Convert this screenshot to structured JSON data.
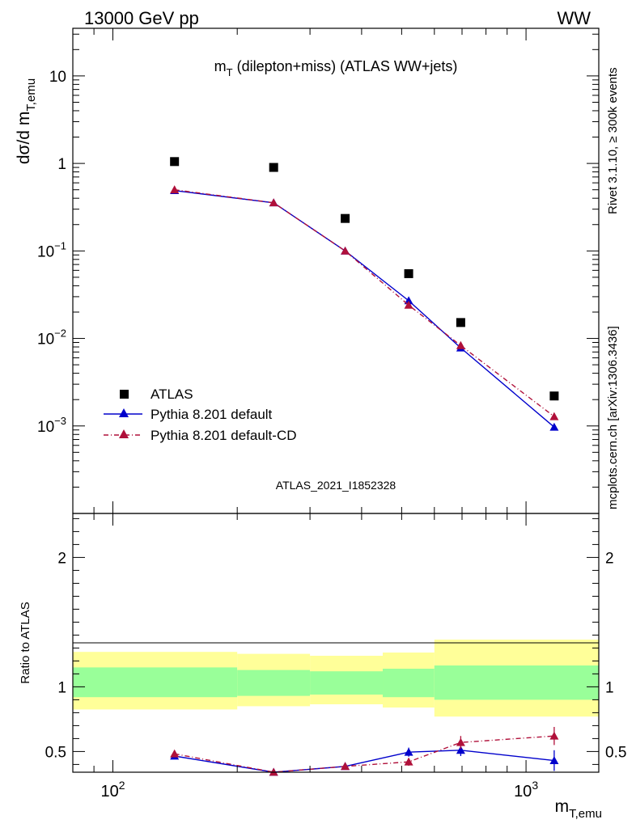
{
  "header": {
    "left": "13000 GeV pp",
    "right": "WW"
  },
  "side_labels": {
    "rivet": "Rivet 3.1.10, ≥ 300k events",
    "mcplots": "mcplots.cern.ch [arXiv:1306.3436]"
  },
  "chart_data": [
    {
      "type": "scatter",
      "panel": "main",
      "title_main": "m",
      "title_sub": "T",
      "title_rest": " (dilepton+miss) (ATLAS WW+jets)",
      "ylabel_main": "dσ/d m",
      "ylabel_sub": "T,emu",
      "watermark": "ATLAS_2021_I1852328",
      "xscale": "log",
      "yscale": "log",
      "xlim": [
        80,
        1500
      ],
      "ylim": [
        0.0001,
        35
      ],
      "y_ticks": [
        {
          "value": 10,
          "label": "10",
          "sup": ""
        },
        {
          "value": 1,
          "label": "1",
          "sup": ""
        },
        {
          "value": 0.1,
          "label": "10",
          "sup": "−1"
        },
        {
          "value": 0.01,
          "label": "10",
          "sup": "−2"
        },
        {
          "value": 0.001,
          "label": "10",
          "sup": "−3"
        }
      ],
      "legend_position": "bottom-left",
      "series": [
        {
          "name": "ATLAS",
          "style": "marker-square",
          "color": "#000000",
          "x": [
            141,
            245,
            365,
            520,
            695,
            1170
          ],
          "y": [
            1.05,
            0.9,
            0.235,
            0.055,
            0.0152,
            0.0022
          ]
        },
        {
          "name": "Pythia 8.201 default",
          "style": "solid-triangle",
          "color": "#0000cc",
          "x": [
            141,
            245,
            365,
            520,
            695,
            1170
          ],
          "y": [
            0.49,
            0.355,
            0.1,
            0.027,
            0.0078,
            0.00097
          ]
        },
        {
          "name": "Pythia 8.201 default-CD",
          "style": "dashdot-triangle",
          "color": "#b0103a",
          "x": [
            141,
            245,
            365,
            520,
            695,
            1170
          ],
          "y": [
            0.5,
            0.355,
            0.1,
            0.024,
            0.0083,
            0.00128
          ]
        }
      ]
    },
    {
      "type": "scatter",
      "panel": "ratio",
      "ylabel": "Ratio to ATLAS",
      "xlabel_main": "m",
      "xlabel_sub": "T,emu",
      "xscale": "log",
      "xlim": [
        80,
        1500
      ],
      "ylim": [
        0.34,
        2.34
      ],
      "x_ticks": [
        {
          "value": 100,
          "label": "10",
          "sup": "2"
        },
        {
          "value": 1000,
          "label": "10",
          "sup": "3"
        }
      ],
      "y_ticks": [
        {
          "value": 0.5,
          "label": "0.5"
        },
        {
          "value": 1,
          "label": "1"
        },
        {
          "value": 2,
          "label": "2"
        }
      ],
      "bands": [
        {
          "x_from": 80,
          "x_to": 200,
          "inner": [
            0.92,
            1.15
          ],
          "outer": [
            0.825,
            1.27
          ]
        },
        {
          "x_from": 200,
          "x_to": 300,
          "inner": [
            0.93,
            1.13
          ],
          "outer": [
            0.85,
            1.255
          ]
        },
        {
          "x_from": 300,
          "x_to": 450,
          "inner": [
            0.94,
            1.12
          ],
          "outer": [
            0.865,
            1.24
          ]
        },
        {
          "x_from": 450,
          "x_to": 600,
          "inner": [
            0.92,
            1.14
          ],
          "outer": [
            0.84,
            1.265
          ]
        },
        {
          "x_from": 600,
          "x_to": 1500,
          "inner": [
            0.9,
            1.165
          ],
          "outer": [
            0.77,
            1.365
          ]
        }
      ],
      "series": [
        {
          "name": "Pythia 8.201 default",
          "style": "solid-triangle",
          "color": "#0000cc",
          "x": [
            141,
            245,
            365,
            520,
            695,
            1170
          ],
          "y": [
            0.465,
            0.34,
            0.385,
            0.495,
            0.51,
            0.43
          ],
          "err": [
            0.01,
            0.01,
            0.015,
            0.035,
            0.045,
            0.08
          ]
        },
        {
          "name": "Pythia 8.201 default-CD",
          "style": "dashdot-triangle",
          "color": "#b0103a",
          "x": [
            141,
            245,
            365,
            520,
            695,
            1170
          ],
          "y": [
            0.482,
            0.34,
            0.385,
            0.42,
            0.57,
            0.62
          ],
          "err": [
            0.01,
            0.01,
            0.015,
            0.03,
            0.05,
            0.07
          ]
        }
      ]
    }
  ],
  "colors": {
    "band_inner": "#99ff99",
    "band_outer": "#ffff99",
    "watermark": "#999999",
    "side_text": "#888888"
  }
}
